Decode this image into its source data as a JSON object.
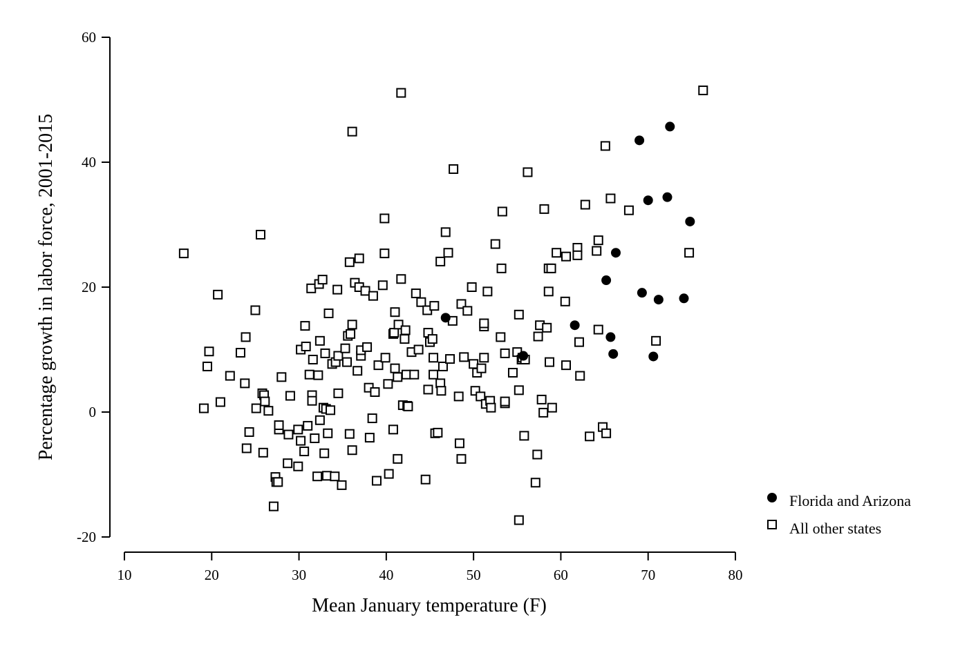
{
  "chart_data": {
    "type": "scatter",
    "title": "",
    "xlabel": "Mean January temperature (F)",
    "ylabel": "Percentage growth in labor force, 2001-2015",
    "xlim": [
      10,
      80
    ],
    "ylim": [
      -20,
      60
    ],
    "xticks": [
      10,
      20,
      30,
      40,
      50,
      60,
      70,
      80
    ],
    "yticks": [
      -20,
      0,
      20,
      40,
      60
    ],
    "x_tick_labels": [
      "10",
      "20",
      "30",
      "40",
      "50",
      "60",
      "70",
      "80"
    ],
    "y_tick_labels": [
      "-20",
      "0",
      "20",
      "40",
      "60"
    ],
    "grid": false,
    "legend_position": "bottom-right",
    "series": [
      {
        "name": "Florida and Arizona",
        "marker": "filled-circle",
        "color": "#000000",
        "points": [
          [
            46.8,
            15.1
          ],
          [
            55.7,
            9.0
          ],
          [
            61.6,
            13.9
          ],
          [
            65.2,
            21.1
          ],
          [
            65.7,
            12.0
          ],
          [
            66.0,
            9.3
          ],
          [
            66.3,
            25.5
          ],
          [
            69.0,
            43.5
          ],
          [
            69.3,
            19.1
          ],
          [
            70.0,
            33.9
          ],
          [
            70.6,
            8.9
          ],
          [
            71.2,
            18.0
          ],
          [
            72.2,
            34.4
          ],
          [
            72.5,
            45.7
          ],
          [
            74.1,
            18.2
          ],
          [
            74.8,
            30.5
          ]
        ]
      },
      {
        "name": "All other states",
        "marker": "hollow-square",
        "color": "#000000",
        "points": [
          [
            16.8,
            25.4
          ],
          [
            19.1,
            0.6
          ],
          [
            19.5,
            7.3
          ],
          [
            19.7,
            9.7
          ],
          [
            20.7,
            18.8
          ],
          [
            21.0,
            1.6
          ],
          [
            22.1,
            5.8
          ],
          [
            23.3,
            9.5
          ],
          [
            23.8,
            4.6
          ],
          [
            23.9,
            12.0
          ],
          [
            24.0,
            -5.8
          ],
          [
            24.3,
            -3.2
          ],
          [
            25.0,
            16.3
          ],
          [
            25.1,
            0.6
          ],
          [
            25.6,
            28.4
          ],
          [
            25.8,
            3.0
          ],
          [
            25.9,
            -6.5
          ],
          [
            26.0,
            2.7
          ],
          [
            26.1,
            1.7
          ],
          [
            26.5,
            0.2
          ],
          [
            27.1,
            -15.1
          ],
          [
            27.3,
            -10.4
          ],
          [
            27.4,
            -11.2
          ],
          [
            27.6,
            -11.2
          ],
          [
            27.7,
            -2.8
          ],
          [
            27.7,
            -2.1
          ],
          [
            28.0,
            5.6
          ],
          [
            28.7,
            -8.2
          ],
          [
            28.8,
            -3.6
          ],
          [
            29.0,
            2.6
          ],
          [
            29.9,
            -8.7
          ],
          [
            29.9,
            -2.8
          ],
          [
            30.2,
            10.0
          ],
          [
            30.2,
            -4.6
          ],
          [
            30.6,
            -6.3
          ],
          [
            30.7,
            13.8
          ],
          [
            30.8,
            10.5
          ],
          [
            31.0,
            -2.2
          ],
          [
            31.2,
            6.0
          ],
          [
            31.4,
            19.8
          ],
          [
            31.5,
            2.7
          ],
          [
            31.5,
            1.8
          ],
          [
            31.6,
            8.4
          ],
          [
            31.8,
            -4.2
          ],
          [
            32.1,
            -10.3
          ],
          [
            32.2,
            5.9
          ],
          [
            32.3,
            20.5
          ],
          [
            32.4,
            11.4
          ],
          [
            32.4,
            -1.3
          ],
          [
            32.7,
            21.2
          ],
          [
            32.8,
            0.7
          ],
          [
            32.9,
            -6.6
          ],
          [
            33.0,
            9.4
          ],
          [
            33.1,
            0.5
          ],
          [
            33.2,
            -10.2
          ],
          [
            33.3,
            -3.4
          ],
          [
            33.4,
            15.8
          ],
          [
            33.6,
            0.3
          ],
          [
            33.8,
            7.7
          ],
          [
            34.1,
            -10.3
          ],
          [
            34.2,
            8.0
          ],
          [
            34.4,
            19.6
          ],
          [
            34.5,
            9.0
          ],
          [
            34.5,
            3.0
          ],
          [
            34.9,
            -11.7
          ],
          [
            35.3,
            10.2
          ],
          [
            35.5,
            8.0
          ],
          [
            35.6,
            12.2
          ],
          [
            35.8,
            24.0
          ],
          [
            35.8,
            -3.5
          ],
          [
            35.9,
            12.5
          ],
          [
            36.1,
            44.9
          ],
          [
            36.1,
            -6.1
          ],
          [
            36.1,
            14.0
          ],
          [
            36.4,
            20.7
          ],
          [
            36.7,
            6.6
          ],
          [
            36.9,
            20.0
          ],
          [
            36.9,
            24.6
          ],
          [
            37.1,
            9.0
          ],
          [
            37.1,
            9.9
          ],
          [
            37.6,
            19.4
          ],
          [
            37.8,
            10.4
          ],
          [
            38.0,
            3.9
          ],
          [
            38.1,
            -4.1
          ],
          [
            38.4,
            -1.0
          ],
          [
            38.5,
            18.6
          ],
          [
            38.7,
            3.2
          ],
          [
            38.9,
            -11.0
          ],
          [
            39.1,
            7.5
          ],
          [
            39.6,
            20.3
          ],
          [
            39.8,
            25.4
          ],
          [
            39.8,
            31.0
          ],
          [
            39.9,
            8.7
          ],
          [
            40.2,
            4.5
          ],
          [
            40.3,
            -9.9
          ],
          [
            40.8,
            12.5
          ],
          [
            40.8,
            -2.8
          ],
          [
            40.9,
            12.7
          ],
          [
            41.0,
            7.0
          ],
          [
            41.0,
            16.0
          ],
          [
            41.3,
            5.6
          ],
          [
            41.3,
            -7.5
          ],
          [
            41.4,
            14.0
          ],
          [
            41.7,
            21.3
          ],
          [
            41.7,
            51.1
          ],
          [
            41.9,
            1.1
          ],
          [
            42.1,
            11.7
          ],
          [
            42.2,
            13.1
          ],
          [
            42.3,
            6.0
          ],
          [
            42.4,
            1.0
          ],
          [
            42.5,
            0.9
          ],
          [
            42.9,
            9.6
          ],
          [
            43.2,
            6.0
          ],
          [
            43.4,
            19.0
          ],
          [
            43.7,
            10.0
          ],
          [
            44.0,
            17.6
          ],
          [
            44.5,
            -10.8
          ],
          [
            44.7,
            16.3
          ],
          [
            44.8,
            12.7
          ],
          [
            44.8,
            3.6
          ],
          [
            45.0,
            11.2
          ],
          [
            45.3,
            11.7
          ],
          [
            45.4,
            8.7
          ],
          [
            45.4,
            6.0
          ],
          [
            45.5,
            17.0
          ],
          [
            45.6,
            -3.4
          ],
          [
            45.9,
            -3.3
          ],
          [
            46.2,
            24.1
          ],
          [
            46.2,
            4.6
          ],
          [
            46.3,
            3.4
          ],
          [
            46.5,
            7.3
          ],
          [
            46.8,
            28.8
          ],
          [
            47.1,
            25.5
          ],
          [
            47.3,
            8.5
          ],
          [
            47.6,
            14.6
          ],
          [
            47.7,
            38.9
          ],
          [
            48.3,
            2.5
          ],
          [
            48.4,
            -5.0
          ],
          [
            48.6,
            -7.5
          ],
          [
            48.6,
            17.3
          ],
          [
            48.9,
            8.8
          ],
          [
            49.3,
            16.2
          ],
          [
            49.8,
            20.0
          ],
          [
            50.0,
            7.7
          ],
          [
            50.2,
            3.4
          ],
          [
            50.4,
            6.3
          ],
          [
            50.8,
            2.5
          ],
          [
            50.9,
            7.0
          ],
          [
            51.2,
            13.7
          ],
          [
            51.2,
            14.2
          ],
          [
            51.2,
            8.7
          ],
          [
            51.4,
            1.3
          ],
          [
            51.6,
            19.3
          ],
          [
            51.9,
            1.8
          ],
          [
            52.0,
            0.7
          ],
          [
            52.5,
            26.9
          ],
          [
            53.1,
            12.0
          ],
          [
            53.2,
            23.0
          ],
          [
            53.3,
            32.1
          ],
          [
            53.6,
            9.4
          ],
          [
            53.6,
            1.4
          ],
          [
            53.6,
            1.7
          ],
          [
            54.5,
            6.3
          ],
          [
            55.0,
            9.6
          ],
          [
            55.2,
            15.6
          ],
          [
            55.2,
            3.5
          ],
          [
            55.2,
            -17.3
          ],
          [
            55.5,
            8.4
          ],
          [
            55.6,
            8.7
          ],
          [
            55.8,
            -3.8
          ],
          [
            55.9,
            8.4
          ],
          [
            56.2,
            38.4
          ],
          [
            57.1,
            -11.3
          ],
          [
            57.3,
            -6.8
          ],
          [
            57.4,
            12.1
          ],
          [
            57.6,
            13.9
          ],
          [
            57.8,
            2.0
          ],
          [
            58.0,
            -0.1
          ],
          [
            58.1,
            32.5
          ],
          [
            58.4,
            13.5
          ],
          [
            58.6,
            19.3
          ],
          [
            58.6,
            23.0
          ],
          [
            58.7,
            8.0
          ],
          [
            58.9,
            23.0
          ],
          [
            59.0,
            0.7
          ],
          [
            59.5,
            25.5
          ],
          [
            60.5,
            17.7
          ],
          [
            60.6,
            7.5
          ],
          [
            60.6,
            24.9
          ],
          [
            61.9,
            26.3
          ],
          [
            61.9,
            25.1
          ],
          [
            62.1,
            11.2
          ],
          [
            62.2,
            5.8
          ],
          [
            62.8,
            33.2
          ],
          [
            63.3,
            -3.9
          ],
          [
            64.1,
            25.8
          ],
          [
            64.3,
            27.5
          ],
          [
            64.3,
            13.2
          ],
          [
            64.8,
            -2.4
          ],
          [
            65.1,
            42.6
          ],
          [
            65.2,
            -3.4
          ],
          [
            65.7,
            34.2
          ],
          [
            67.8,
            32.3
          ],
          [
            70.9,
            11.4
          ],
          [
            74.7,
            25.5
          ],
          [
            76.3,
            51.5
          ]
        ]
      }
    ]
  }
}
